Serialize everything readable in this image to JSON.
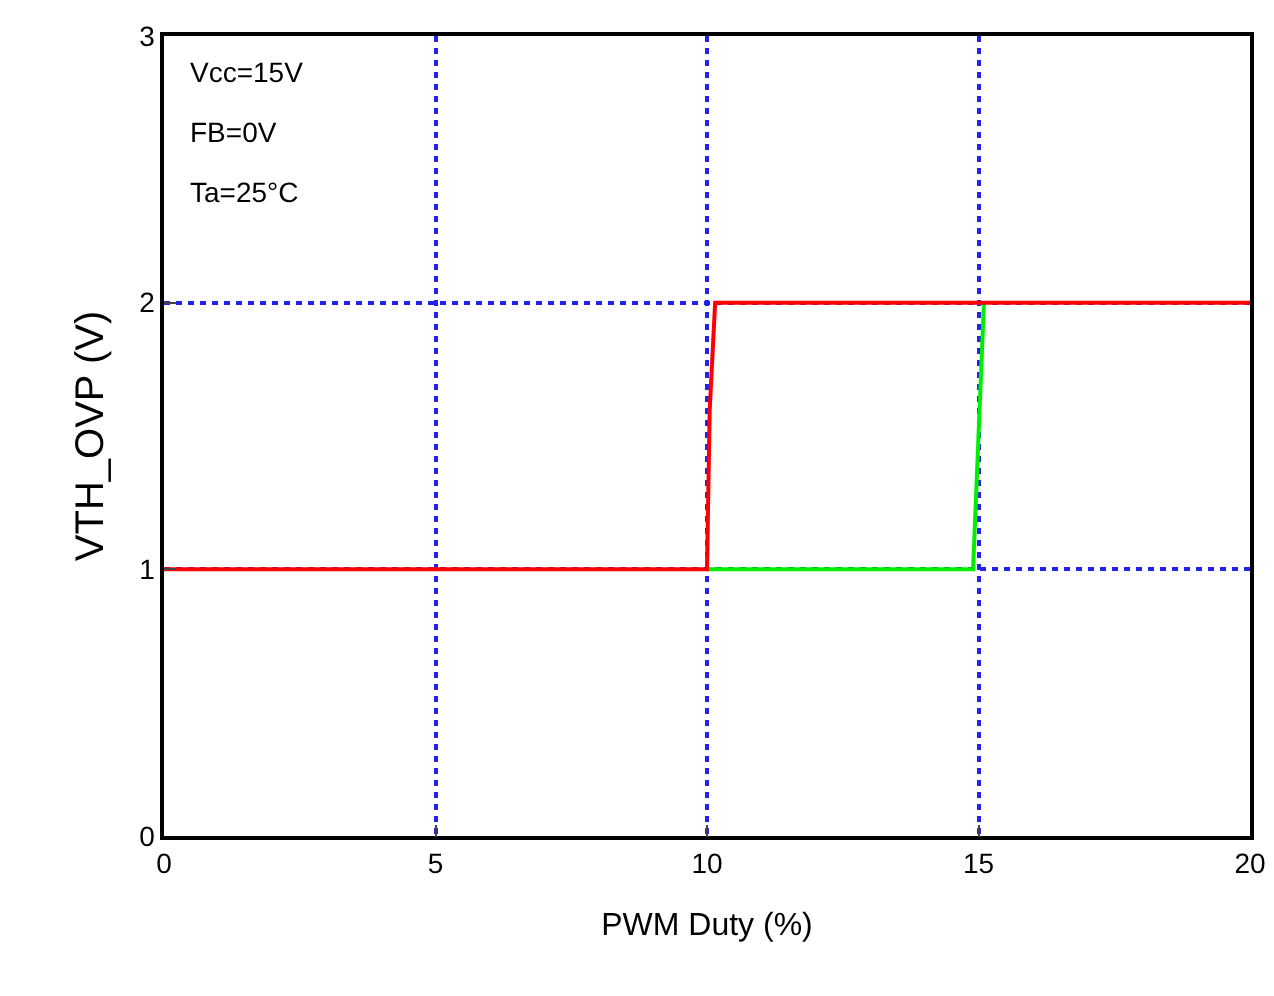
{
  "chart_data": {
    "type": "line",
    "xlabel": "PWM Duty (%)",
    "ylabel": "VTH_OVP (V)",
    "xlim": [
      0,
      20
    ],
    "xticks": [
      0,
      5,
      10,
      15,
      20
    ],
    "ylim": [
      0,
      3
    ],
    "yticks": [
      0,
      1,
      2,
      3
    ],
    "grid": true,
    "marker": "none",
    "line_style": "solid",
    "annotations": [
      "Vcc=15V",
      "FB=0V",
      "Ta=25°C"
    ],
    "series": [
      {
        "color": "#00ee00",
        "x": [
          10,
          14.9,
          15,
          15.1
        ],
        "values": [
          1,
          1,
          1.5,
          2
        ]
      },
      {
        "color": "#ff0000",
        "x": [
          0,
          10,
          10.05,
          10.15,
          20
        ],
        "values": [
          1,
          1,
          1.6,
          2,
          2
        ]
      }
    ]
  }
}
